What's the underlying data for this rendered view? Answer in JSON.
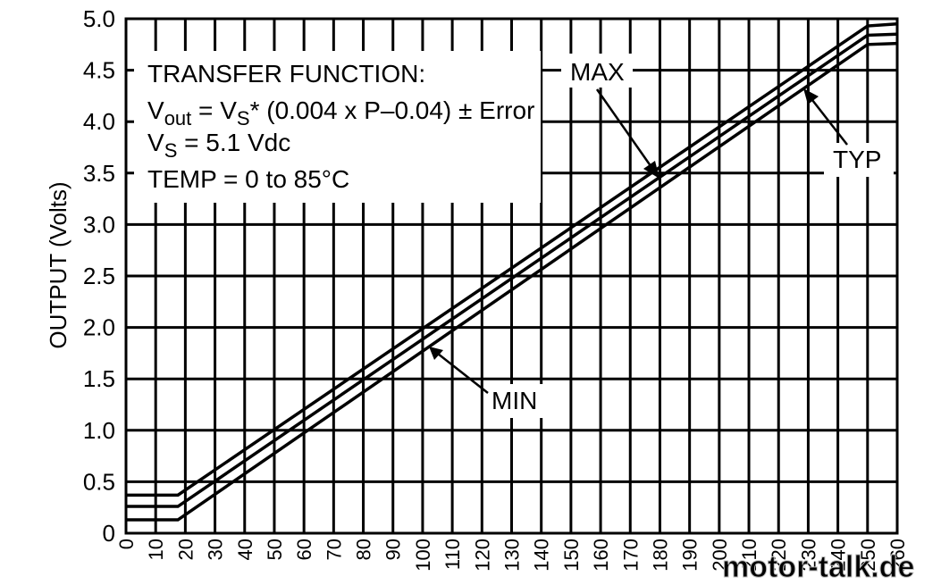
{
  "chart_data": {
    "type": "line",
    "title": "",
    "xlabel": "",
    "ylabel": "OUTPUT (Volts)",
    "xlim": [
      0,
      260
    ],
    "ylim": [
      0,
      5.0
    ],
    "x_ticks": [
      "0",
      "10",
      "20",
      "30",
      "40",
      "50",
      "60",
      "70",
      "80",
      "90",
      "100",
      "110",
      "120",
      "130",
      "140",
      "150",
      "160",
      "170",
      "180",
      "190",
      "200",
      "210",
      "220",
      "230",
      "240",
      "250",
      "260"
    ],
    "y_ticks": [
      "0",
      "0.5",
      "1.0",
      "1.5",
      "2.0",
      "2.5",
      "3.0",
      "3.5",
      "4.0",
      "4.5",
      "5.0"
    ],
    "grid": true,
    "series": [
      {
        "name": "MAX",
        "x": [
          0,
          17.5,
          250,
          260
        ],
        "y": [
          0.37,
          0.37,
          4.93,
          4.95
        ]
      },
      {
        "name": "TYP",
        "x": [
          0,
          17.5,
          250,
          260
        ],
        "y": [
          0.26,
          0.26,
          4.84,
          4.85
        ]
      },
      {
        "name": "MIN",
        "x": [
          0,
          17.5,
          250,
          260
        ],
        "y": [
          0.13,
          0.13,
          4.75,
          4.76
        ]
      }
    ],
    "annotations": {
      "transfer_function_title": "TRANSFER FUNCTION:",
      "eq_v": "V",
      "eq_out_sub": "out",
      "eq_equals_v": " = V",
      "eq_s_sub": "S",
      "eq_rest": "* (0.004 x P–0.04) ± Error",
      "vs_v": "V",
      "vs_sub": "S",
      "vs_rest": " = 5.1 Vdc",
      "temp": "TEMP = 0 to 85°C",
      "max_label": "MAX",
      "typ_label": "TYP",
      "min_label": "MIN"
    }
  },
  "watermark": "motor-talk.de"
}
